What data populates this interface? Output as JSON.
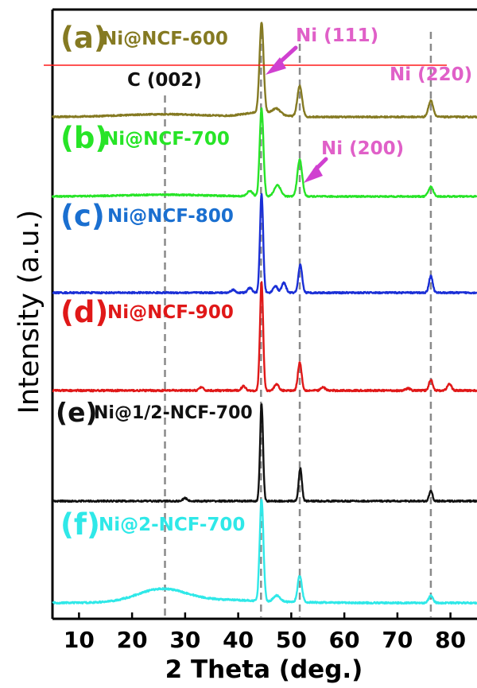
{
  "chart_data": {
    "type": "line",
    "title": "",
    "xlabel": "2 Theta (deg.)",
    "ylabel": "Intensity (a.u.)",
    "xlim": [
      5,
      85
    ],
    "x_ticks": [
      10,
      20,
      30,
      40,
      50,
      60,
      70,
      80
    ],
    "reference_lines": [
      26.2,
      44.3,
      51.6,
      76.3
    ],
    "peak_labels": [
      {
        "text": "C (002)",
        "color": "#111111"
      },
      {
        "text": "Ni (111)",
        "color": "#e060c8"
      },
      {
        "text": "Ni (200)",
        "color": "#e060c8"
      },
      {
        "text": "Ni (220)",
        "color": "#e060c8"
      }
    ],
    "series": [
      {
        "letter": "(a)",
        "name": "Ni@NCF-600",
        "color": "#857a22",
        "peaks": [
          [
            44.4,
            0.38,
            100
          ],
          [
            47.2,
            0.7,
            6
          ],
          [
            51.6,
            0.45,
            34
          ],
          [
            76.3,
            0.45,
            18
          ]
        ],
        "humps": [
          [
            26,
            8,
            3
          ],
          [
            44.4,
            3,
            5
          ]
        ]
      },
      {
        "letter": "(b)",
        "name": "Ni@NCF-700",
        "color": "#27e427",
        "peaks": [
          [
            44.4,
            0.35,
            100
          ],
          [
            42.2,
            0.5,
            6
          ],
          [
            47.4,
            0.6,
            13
          ],
          [
            51.6,
            0.45,
            42
          ],
          [
            76.3,
            0.45,
            11
          ]
        ],
        "humps": [
          [
            26,
            8,
            2
          ]
        ]
      },
      {
        "letter": "(c)",
        "name": "Ni@NCF-800",
        "color": "#1a2fd6",
        "peaks": [
          [
            44.4,
            0.3,
            100
          ],
          [
            39,
            0.4,
            3
          ],
          [
            42.2,
            0.4,
            5
          ],
          [
            47.0,
            0.4,
            7
          ],
          [
            48.6,
            0.4,
            10
          ],
          [
            51.7,
            0.35,
            28
          ],
          [
            76.3,
            0.35,
            17
          ]
        ],
        "humps": []
      },
      {
        "letter": "(d)",
        "name": "Ni@NCF-900",
        "color": "#e01818",
        "peaks": [
          [
            44.4,
            0.3,
            100
          ],
          [
            33,
            0.4,
            3
          ],
          [
            41,
            0.4,
            4
          ],
          [
            47.2,
            0.4,
            6
          ],
          [
            51.6,
            0.35,
            26
          ],
          [
            56,
            0.4,
            3
          ],
          [
            72,
            0.4,
            2
          ],
          [
            76.3,
            0.35,
            10
          ],
          [
            79.8,
            0.4,
            6
          ]
        ],
        "humps": []
      },
      {
        "letter": "(e)",
        "name": "Ni@1/2-NCF-700",
        "color": "#111111",
        "peaks": [
          [
            44.4,
            0.28,
            100
          ],
          [
            30,
            0.4,
            3
          ],
          [
            51.7,
            0.3,
            34
          ],
          [
            76.3,
            0.3,
            11
          ]
        ],
        "humps": []
      },
      {
        "letter": "(f)",
        "name": "Ni@2-NCF-700",
        "color": "#2fe8e8",
        "peaks": [
          [
            44.4,
            0.35,
            100
          ],
          [
            47.3,
            0.6,
            6
          ],
          [
            51.6,
            0.4,
            26
          ],
          [
            76.3,
            0.4,
            7
          ]
        ],
        "humps": [
          [
            25.5,
            4.5,
            12
          ],
          [
            35,
            10,
            3
          ]
        ]
      }
    ]
  }
}
